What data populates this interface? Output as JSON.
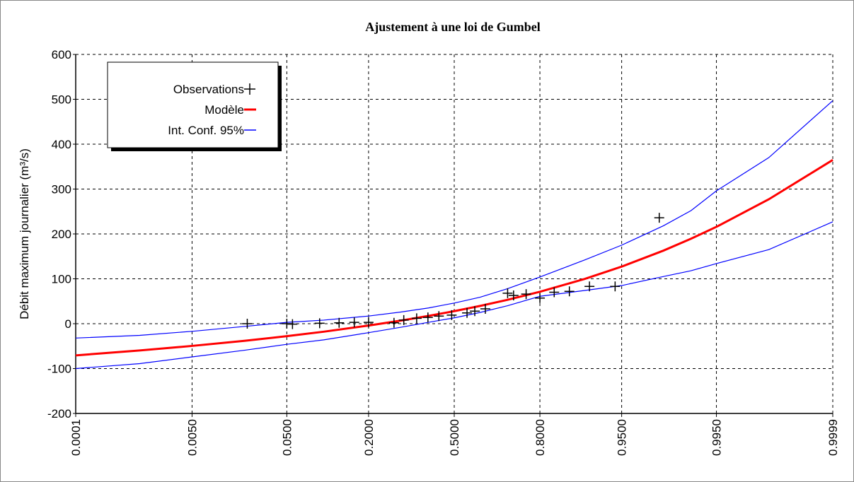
{
  "chart_data": {
    "type": "line",
    "title": "Ajustement à une loi de Gumbel",
    "ylabel": "Débit maximum journalier (m³/s)",
    "xscale": "probit",
    "xlim": [
      0.0001,
      0.9999
    ],
    "xticks": [
      0.0001,
      {
        "value": 0.005,
        "label": "0.0050"
      },
      {
        "value": 0.05,
        "label": "0.0500"
      },
      {
        "value": 0.2,
        "label": "0.2000"
      },
      {
        "value": 0.5,
        "label": "0.5000"
      },
      {
        "value": 0.8,
        "label": "0.8000"
      },
      {
        "value": 0.95,
        "label": "0.9500"
      },
      {
        "value": 0.995,
        "label": "0.9950"
      },
      0.9999
    ],
    "ylim": [
      -200,
      600
    ],
    "yticks": [
      -200,
      -100,
      0,
      100,
      200,
      300,
      400,
      500,
      600
    ],
    "grid": true,
    "legend": "upper-left",
    "observations": {
      "name": "Observations",
      "color": "#000000",
      "x": [
        0.021,
        0.05,
        0.056,
        0.093,
        0.129,
        0.163,
        0.2,
        0.277,
        0.31,
        0.356,
        0.398,
        0.44,
        0.49,
        0.55,
        0.58,
        0.62,
        0.7,
        0.72,
        0.76,
        0.8,
        0.837,
        0.871,
        0.908,
        0.943,
        0.978
      ],
      "values": [
        0,
        0,
        -1,
        1,
        2,
        3,
        3,
        2,
        8,
        12,
        14,
        17,
        19,
        24,
        28,
        33,
        68,
        63,
        66,
        57,
        70,
        72,
        83,
        83,
        236
      ]
    },
    "x": [
      0.0001,
      0.001,
      0.005,
      0.02,
      0.05,
      0.1,
      0.2,
      0.3,
      0.4,
      0.5,
      0.6,
      0.7,
      0.8,
      0.9,
      0.95,
      0.98,
      0.99,
      0.995,
      0.999,
      0.9999
    ],
    "series": [
      {
        "name": "Modèle",
        "color": "#ff0000",
        "values": [
          -70.6,
          -59.6,
          -49.5,
          -38.0,
          -27.8,
          -17.8,
          -4.1,
          6.9,
          17.3,
          28.0,
          39.6,
          53.3,
          71.2,
          99.7,
          127.2,
          162.7,
          189.3,
          215.8,
          277.2,
          364.9
        ]
      },
      {
        "name": "Int. Conf. 95%",
        "color": "#0000ff",
        "values": [
          -32,
          -26,
          -17,
          -6,
          3,
          8,
          17,
          26,
          35,
          46,
          59,
          78,
          104,
          142,
          175,
          218,
          252,
          296,
          370,
          497
        ],
        "lower": [
          -100,
          -89,
          -74,
          -59,
          -46,
          -36,
          -20,
          -8,
          3,
          13,
          25,
          40,
          61,
          74,
          85,
          105,
          118,
          134,
          165,
          227
        ]
      }
    ]
  }
}
